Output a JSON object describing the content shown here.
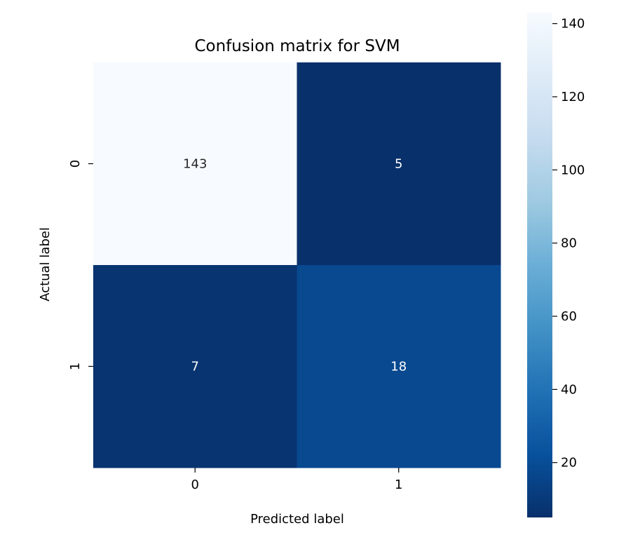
{
  "chart_data": {
    "type": "heatmap",
    "title": "Confusion matrix for SVM",
    "xlabel": "Predicted label",
    "ylabel": "Actual label",
    "x_categories": [
      "0",
      "1"
    ],
    "y_categories": [
      "0",
      "1"
    ],
    "values": [
      [
        143,
        5
      ],
      [
        7,
        18
      ]
    ],
    "colormap": "Blues_r",
    "colorbar": {
      "min": 5,
      "max": 143,
      "ticks": [
        20,
        40,
        60,
        80,
        100,
        120,
        140
      ],
      "placement": "right"
    },
    "colors": {
      "low": "#08306b",
      "high": "#f7fbff"
    }
  }
}
